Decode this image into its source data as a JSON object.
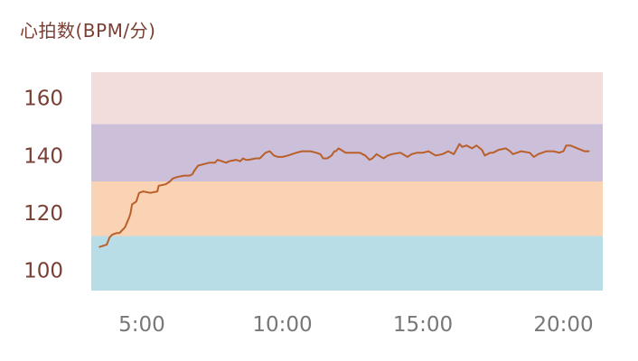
{
  "chart_data": {
    "type": "line",
    "title": "",
    "ylabel": "心拍数(BPM/分)",
    "xlabel": "",
    "xlim": [
      3.2,
      21.4
    ],
    "ylim": [
      93,
      169
    ],
    "x_ticks": [
      {
        "value": 5,
        "label": "5:00"
      },
      {
        "value": 10,
        "label": "10:00"
      },
      {
        "value": 15,
        "label": "15:00"
      },
      {
        "value": 20,
        "label": "20:00"
      }
    ],
    "y_ticks": [
      {
        "value": 100,
        "label": "100"
      },
      {
        "value": 120,
        "label": "120"
      },
      {
        "value": 140,
        "label": "140"
      },
      {
        "value": 160,
        "label": "160"
      }
    ],
    "zones": [
      {
        "from": 93,
        "to": 112,
        "color": "#b8dde7"
      },
      {
        "from": 112,
        "to": 131,
        "color": "#f9d3b4"
      },
      {
        "from": 131,
        "to": 151,
        "color": "#ccbfd9"
      },
      {
        "from": 151,
        "to": 169,
        "color": "#f3dcdc"
      }
    ],
    "line_color": "#b9602a",
    "grid": false,
    "legend": "none",
    "series": [
      {
        "x": [
          3.5,
          3.6,
          3.75,
          3.85,
          3.95,
          4.1,
          4.2,
          4.4,
          4.55,
          4.6,
          4.65,
          4.8,
          4.9,
          5.05,
          5.3,
          5.55,
          5.6,
          5.85,
          6.0,
          6.1,
          6.25,
          6.5,
          6.7,
          6.8,
          6.85,
          7.0,
          7.4,
          7.6,
          7.7,
          7.85,
          8.0,
          8.1,
          8.35,
          8.5,
          8.6,
          8.7,
          8.8,
          9.05,
          9.2,
          9.4,
          9.55,
          9.7,
          9.85,
          10.0,
          10.2,
          10.5,
          10.7,
          11.0,
          11.2,
          11.35,
          11.45,
          11.6,
          11.75,
          11.85,
          11.9,
          12.0,
          12.25,
          12.5,
          12.75,
          12.95,
          13.1,
          13.2,
          13.35,
          13.6,
          13.75,
          13.9,
          14.2,
          14.45,
          14.6,
          14.8,
          15.0,
          15.2,
          15.45,
          15.7,
          15.9,
          16.1,
          16.3,
          16.4,
          16.55,
          16.75,
          16.9,
          17.1,
          17.2,
          17.4,
          17.5,
          17.7,
          17.95,
          18.1,
          18.2,
          18.5,
          18.8,
          18.95,
          19.1,
          19.4,
          19.65,
          19.85,
          20.0,
          20.1,
          20.25,
          20.5,
          20.75,
          20.9
        ],
        "values": [
          108.2,
          108.5,
          109,
          111.5,
          112.5,
          113,
          113,
          115,
          118.5,
          120,
          123,
          124,
          127,
          127.5,
          127,
          127.5,
          129.5,
          130,
          131,
          132,
          132.5,
          133,
          133,
          133.5,
          134.5,
          136.5,
          137.5,
          137.5,
          138.5,
          138,
          137.5,
          138,
          138.5,
          138,
          139,
          138.5,
          138.5,
          139,
          139,
          141,
          141.5,
          140,
          139.5,
          139.5,
          140,
          141,
          141.5,
          141.5,
          141,
          140.5,
          139,
          139,
          140,
          141.5,
          141.5,
          142.5,
          141,
          141,
          141,
          140,
          138.5,
          139,
          140.5,
          139,
          140,
          140.5,
          141,
          139.5,
          140.5,
          141,
          141,
          141.5,
          140,
          140.5,
          141.5,
          140.5,
          144,
          143,
          143.5,
          142.5,
          143.5,
          142,
          140,
          141,
          141,
          142,
          142.5,
          141.5,
          140.5,
          141.5,
          141,
          139.5,
          140.5,
          141.5,
          141.5,
          141,
          141.5,
          143.5,
          143.5,
          142.5,
          141.5,
          141.5
        ]
      }
    ]
  }
}
